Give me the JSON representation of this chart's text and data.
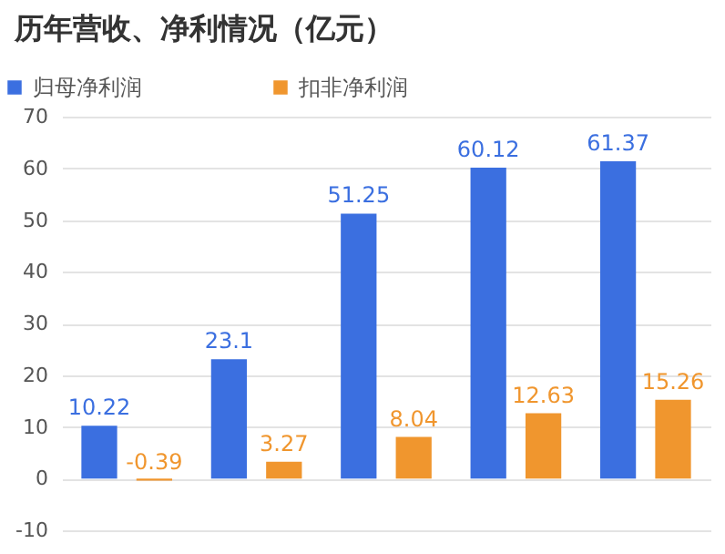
{
  "chart_data": {
    "type": "bar",
    "title": "历年营收、净利情况（亿元）",
    "categories": [
      null,
      null,
      null,
      null,
      null
    ],
    "series": [
      {
        "name": "归母净利润",
        "color": "#3b6fe0",
        "values": [
          10.22,
          23.1,
          51.25,
          60.12,
          61.37
        ]
      },
      {
        "name": "扣非净利润",
        "color": "#f0962e",
        "values": [
          -0.39,
          3.27,
          8.04,
          12.63,
          15.26
        ]
      }
    ],
    "ylim": [
      -10,
      70
    ],
    "yticks": [
      -10,
      0,
      10,
      20,
      30,
      40,
      50,
      60,
      70
    ],
    "grid": "y",
    "legend": "top left",
    "data_labels": true,
    "tick_labels": "y"
  }
}
